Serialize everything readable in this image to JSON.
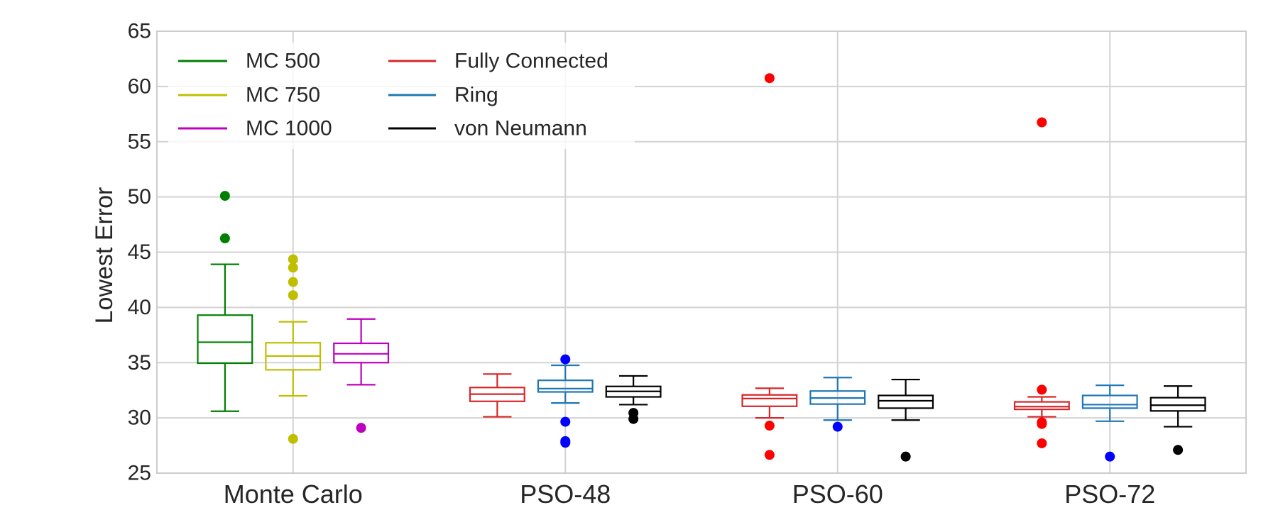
{
  "chart_data": {
    "type": "box",
    "title": "",
    "xlabel": "",
    "ylabel": "Lowest Error",
    "ylim": [
      25,
      65
    ],
    "yticks": [
      "25",
      "30",
      "35",
      "40",
      "45",
      "50",
      "55",
      "60",
      "65"
    ],
    "ytick_values": [
      25,
      30,
      35,
      40,
      45,
      50,
      55,
      60,
      65
    ],
    "categories": [
      "Monte Carlo",
      "PSO-48",
      "PSO-60",
      "PSO-72"
    ],
    "grid": true,
    "legend_position": "top-left",
    "legend": [
      {
        "label": "MC 500",
        "color": "#008000"
      },
      {
        "label": "MC 750",
        "color": "#bfbf00"
      },
      {
        "label": "MC 1000",
        "color": "#bf00bf"
      },
      {
        "label": "Fully Connected",
        "color": "#d62728"
      },
      {
        "label": "Ring",
        "color": "#1f77b4"
      },
      {
        "label": "von Neumann",
        "color": "#000000"
      }
    ],
    "boxes": [
      {
        "category": "Monte Carlo",
        "series": "MC 500",
        "slot": -1,
        "color": "#008000",
        "flier_color": "#008000",
        "whisker_low": 30.6,
        "q1": 34.95,
        "median": 36.85,
        "q3": 39.3,
        "whisker_high": 43.9,
        "outliers": [
          50.1,
          46.25
        ]
      },
      {
        "category": "Monte Carlo",
        "series": "MC 750",
        "slot": 0,
        "color": "#bfbf00",
        "flier_color": "#bfbf00",
        "whisker_low": 32.0,
        "q1": 34.35,
        "median": 35.6,
        "q3": 36.8,
        "whisker_high": 38.7,
        "outliers": [
          44.35,
          43.6,
          42.3,
          41.1,
          28.1
        ]
      },
      {
        "category": "Monte Carlo",
        "series": "MC 1000",
        "slot": 1,
        "color": "#bf00bf",
        "flier_color": "#bf00bf",
        "whisker_low": 33.0,
        "q1": 35.0,
        "median": 35.8,
        "q3": 36.75,
        "whisker_high": 38.95,
        "outliers": [
          29.1
        ]
      },
      {
        "category": "PSO-48",
        "series": "Fully Connected",
        "slot": -1,
        "color": "#d62728",
        "flier_color": "#ff0000",
        "whisker_low": 30.1,
        "q1": 31.5,
        "median": 32.15,
        "q3": 32.75,
        "whisker_high": 33.97,
        "outliers": []
      },
      {
        "category": "PSO-48",
        "series": "Ring",
        "slot": 0,
        "color": "#1f77b4",
        "flier_color": "#0000ff",
        "whisker_low": 31.35,
        "q1": 32.35,
        "median": 32.65,
        "q3": 33.4,
        "whisker_high": 34.76,
        "outliers": [
          35.3,
          29.65,
          27.9,
          27.75
        ]
      },
      {
        "category": "PSO-48",
        "series": "von Neumann",
        "slot": 1,
        "color": "#000000",
        "flier_color": "#000000",
        "whisker_low": 31.2,
        "q1": 31.9,
        "median": 32.4,
        "q3": 32.85,
        "whisker_high": 33.8,
        "outliers": [
          30.45,
          29.9
        ]
      },
      {
        "category": "PSO-60",
        "series": "Fully Connected",
        "slot": -1,
        "color": "#d62728",
        "flier_color": "#ff0000",
        "whisker_low": 30.0,
        "q1": 31.05,
        "median": 31.75,
        "q3": 32.08,
        "whisker_high": 32.68,
        "outliers": [
          60.75,
          29.3,
          26.65
        ]
      },
      {
        "category": "PSO-60",
        "series": "Ring",
        "slot": 0,
        "color": "#1f77b4",
        "flier_color": "#0000ff",
        "whisker_low": 29.8,
        "q1": 31.25,
        "median": 31.8,
        "q3": 32.43,
        "whisker_high": 33.65,
        "outliers": [
          29.2
        ]
      },
      {
        "category": "PSO-60",
        "series": "von Neumann",
        "slot": 1,
        "color": "#000000",
        "flier_color": "#000000",
        "whisker_low": 29.8,
        "q1": 30.88,
        "median": 31.55,
        "q3": 32.03,
        "whisker_high": 33.47,
        "outliers": [
          26.5
        ]
      },
      {
        "category": "PSO-72",
        "series": "Fully Connected",
        "slot": -1,
        "color": "#d62728",
        "flier_color": "#ff0000",
        "whisker_low": 30.1,
        "q1": 30.77,
        "median": 31.02,
        "q3": 31.45,
        "whisker_high": 31.9,
        "outliers": [
          56.75,
          32.55,
          29.6,
          29.45,
          27.7
        ]
      },
      {
        "category": "PSO-72",
        "series": "Ring",
        "slot": 0,
        "color": "#1f77b4",
        "flier_color": "#0000ff",
        "whisker_low": 29.7,
        "q1": 30.88,
        "median": 31.2,
        "q3": 32.03,
        "whisker_high": 32.95,
        "outliers": [
          26.5
        ]
      },
      {
        "category": "PSO-72",
        "series": "von Neumann",
        "slot": 1,
        "color": "#000000",
        "flier_color": "#000000",
        "whisker_low": 29.2,
        "q1": 30.63,
        "median": 31.15,
        "q3": 31.83,
        "whisker_high": 32.88,
        "outliers": [
          27.1
        ]
      }
    ]
  }
}
